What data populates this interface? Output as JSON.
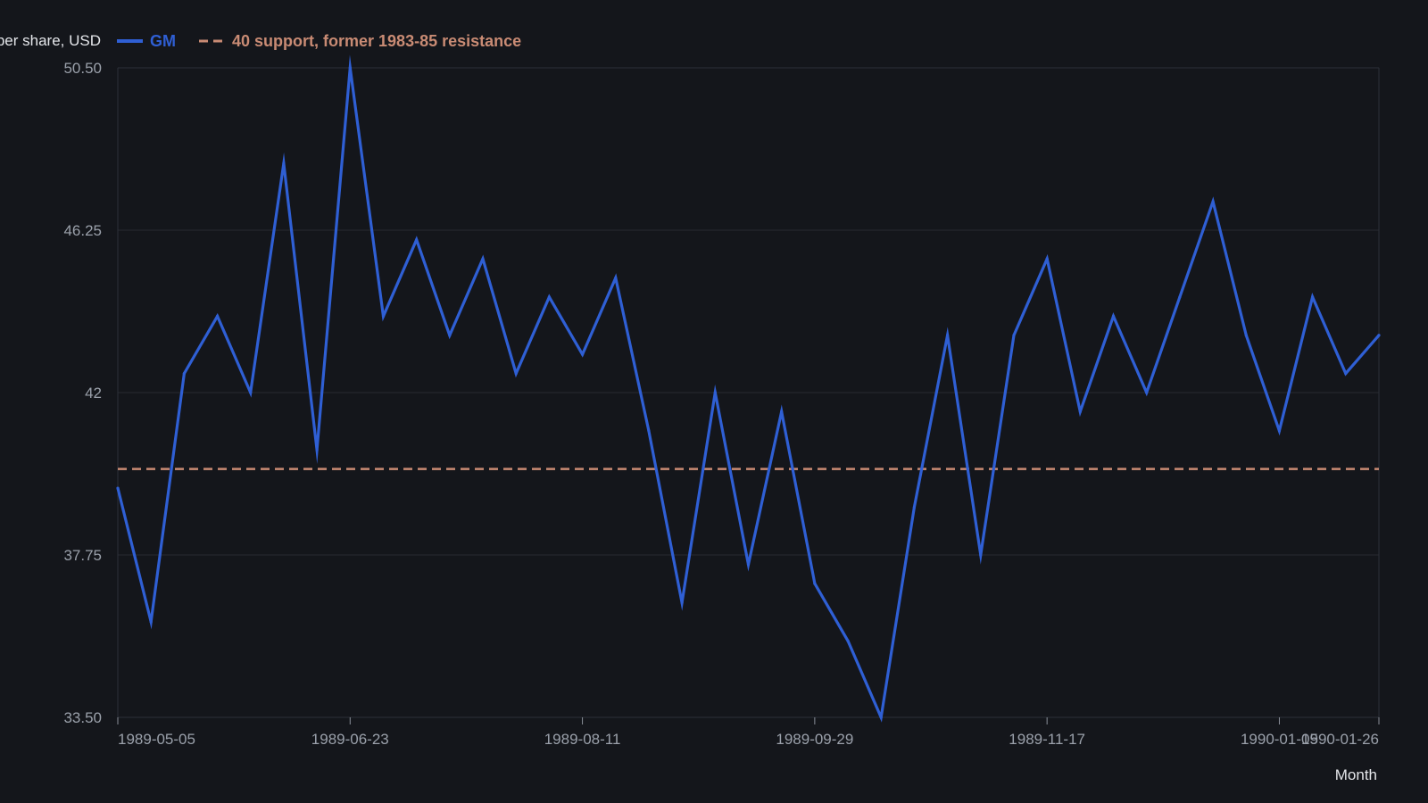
{
  "chart_data": {
    "type": "line",
    "ylabel": "Price per share, USD",
    "xlabel": "Month",
    "ylim": [
      33.5,
      50.5
    ],
    "y_ticks": [
      "33.50",
      "37.75",
      "42",
      "46.25",
      "50.50"
    ],
    "x_ticks": [
      "1989-05-05",
      "1989-06-23",
      "1989-08-11",
      "1989-09-29",
      "1989-11-17",
      "1990-01-05",
      "1990-01-26"
    ],
    "grid": true,
    "legend_position": "top-left",
    "x": [
      "1989-05-05",
      "1989-05-12",
      "1989-05-19",
      "1989-05-26",
      "1989-06-02",
      "1989-06-09",
      "1989-06-16",
      "1989-06-23",
      "1989-06-30",
      "1989-07-07",
      "1989-07-14",
      "1989-07-21",
      "1989-07-28",
      "1989-08-04",
      "1989-08-11",
      "1989-08-18",
      "1989-08-25",
      "1989-09-01",
      "1989-09-08",
      "1989-09-15",
      "1989-09-22",
      "1989-09-29",
      "1989-10-06",
      "1989-10-13",
      "1989-10-20",
      "1989-10-27",
      "1989-11-03",
      "1989-11-10",
      "1989-11-17",
      "1989-11-24",
      "1989-12-01",
      "1989-12-08",
      "1989-12-15",
      "1989-12-22",
      "1989-12-29",
      "1990-01-05",
      "1990-01-12",
      "1990-01-19",
      "1990-01-26"
    ],
    "series": [
      {
        "name": "GM",
        "color": "#2f5fd4",
        "values": [
          39.5,
          36.0,
          42.5,
          44.0,
          42.0,
          48.0,
          40.5,
          50.5,
          44.0,
          46.0,
          43.5,
          45.5,
          42.5,
          44.5,
          43.0,
          45.0,
          41.0,
          36.5,
          42.0,
          37.5,
          41.5,
          37.0,
          35.5,
          33.5,
          39.0,
          43.5,
          37.75,
          43.5,
          45.5,
          41.5,
          44.0,
          42.0,
          44.5,
          47.0,
          43.5,
          41.0,
          44.5,
          42.5,
          43.5
        ]
      }
    ],
    "reference_line": {
      "name": "40 support, former 1983-85 resistance",
      "value": 40,
      "color": "#c98b74",
      "style": "dashed"
    }
  }
}
